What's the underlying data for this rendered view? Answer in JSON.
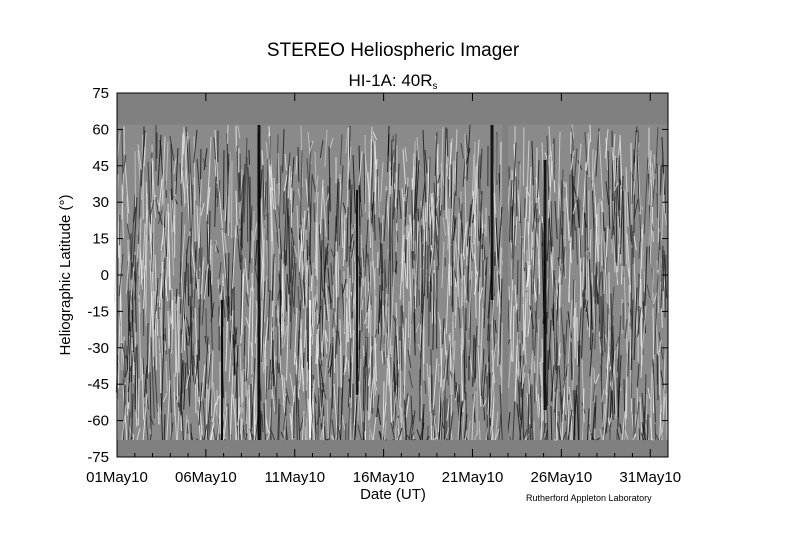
{
  "chart_data": {
    "type": "heatmap",
    "title": "STEREO Heliospheric Imager",
    "subtitle": "HI-1A: 40R",
    "subtitle_subscript": "s",
    "xlabel": "Date (UT)",
    "ylabel": "Heliographic Latitude (°)",
    "credit": "Rutherford Appleton Laboratory",
    "x_ticks": [
      "01May10",
      "06May10",
      "11May10",
      "16May10",
      "21May10",
      "26May10",
      "31May10"
    ],
    "x_tick_days": [
      1,
      6,
      11,
      16,
      21,
      26,
      31
    ],
    "xlim_days": [
      1,
      32
    ],
    "y_ticks": [
      "75",
      "60",
      "45",
      "30",
      "15",
      "0",
      "-15",
      "-30",
      "-45",
      "-60",
      "-75"
    ],
    "y_tick_values": [
      75,
      60,
      45,
      30,
      15,
      0,
      -15,
      -30,
      -45,
      -60,
      -75
    ],
    "ylim": [
      -75,
      75
    ],
    "data_gap_days": [
      22.7,
      23.0
    ],
    "valid_latitude_top": 62,
    "valid_latitude_bottom": -68,
    "colors": {
      "mask": "#808080",
      "frame": "#000000"
    }
  }
}
